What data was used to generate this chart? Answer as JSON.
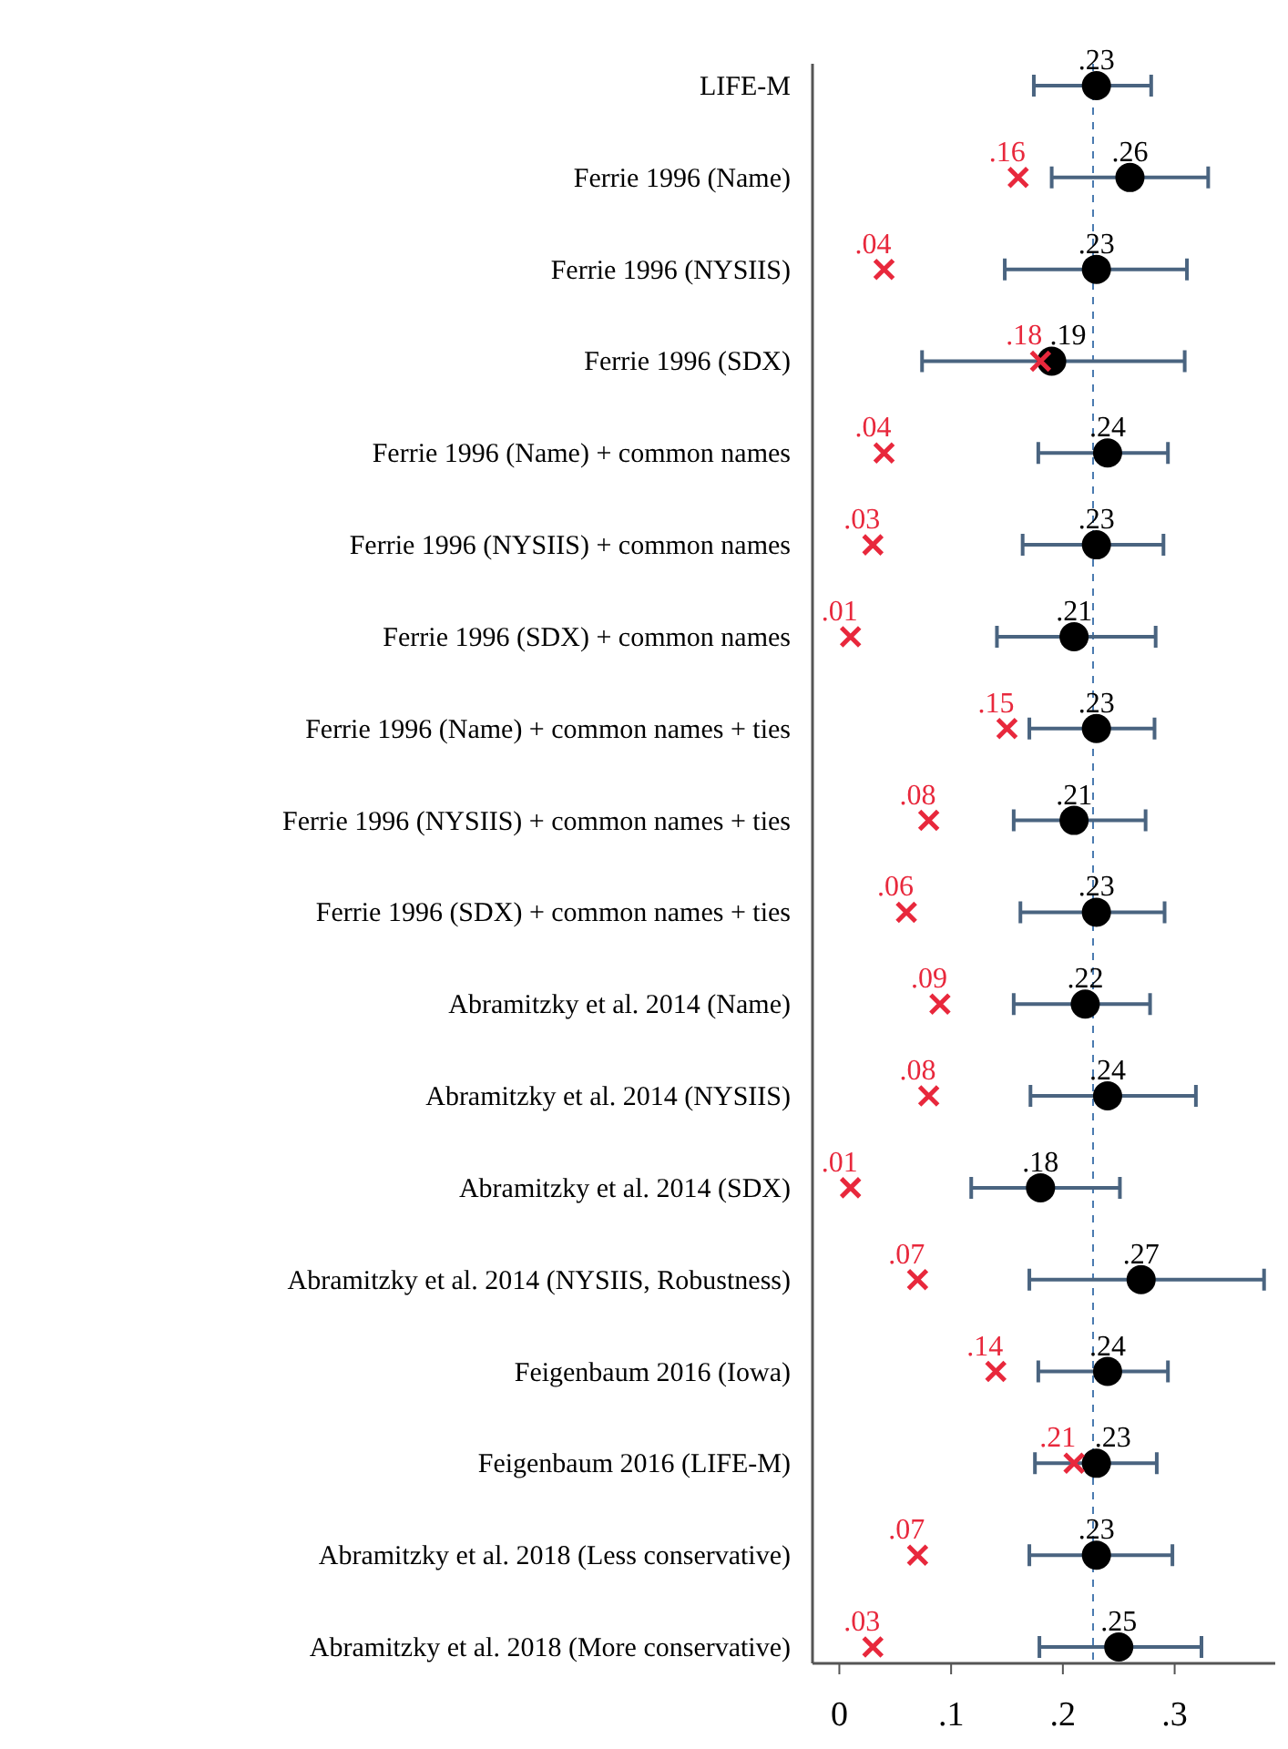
{
  "chart_data": {
    "type": "scatter",
    "orientation": "horizontal",
    "categories": [
      "LIFE-M",
      "Ferrie 1996 (Name)",
      "Ferrie 1996 (NYSIIS)",
      "Ferrie 1996 (SDX)",
      "Ferrie 1996 (Name) + common names",
      "Ferrie 1996 (NYSIIS) + common names",
      "Ferrie 1996 (SDX) + common names",
      "Ferrie 1996 (Name) + common names + ties",
      "Ferrie 1996 (NYSIIS) + common names + ties",
      "Ferrie 1996 (SDX) + common names + ties",
      "Abramitzky et al. 2014 (Name)",
      "Abramitzky et al. 2014 (NYSIIS)",
      "Abramitzky et al. 2014 (SDX)",
      "Abramitzky et al. 2014 (NYSIIS, Robustness)",
      "Feigenbaum 2016 (Iowa)",
      "Feigenbaum 2016 (LIFE-M)",
      "Abramitzky et al. 2018 (Less conservative)",
      "Abramitzky et al. 2018 (More conservative)"
    ],
    "series": [
      {
        "color": "#000000",
        "marker": "circle",
        "values": [
          0.23,
          0.26,
          0.23,
          0.19,
          0.24,
          0.23,
          0.21,
          0.23,
          0.21,
          0.23,
          0.22,
          0.24,
          0.18,
          0.27,
          0.24,
          0.23,
          0.23,
          0.25
        ],
        "value_labels": [
          ".23",
          ".26",
          ".23",
          ".19",
          ".24",
          ".23",
          ".21",
          ".23",
          ".21",
          ".23",
          ".22",
          ".24",
          ".18",
          ".27",
          ".24",
          ".23",
          ".23",
          ".25"
        ],
        "errors": [
          [
            0.174,
            0.279
          ],
          [
            0.19,
            0.33
          ],
          [
            0.148,
            0.311
          ],
          [
            0.074,
            0.309
          ],
          [
            0.178,
            0.294
          ],
          [
            0.164,
            0.29
          ],
          [
            0.141,
            0.283
          ],
          [
            0.17,
            0.282
          ],
          [
            0.156,
            0.274
          ],
          [
            0.162,
            0.291
          ],
          [
            0.156,
            0.278
          ],
          [
            0.171,
            0.319
          ],
          [
            0.118,
            0.251
          ],
          [
            0.17,
            0.38
          ],
          [
            0.178,
            0.294
          ],
          [
            0.175,
            0.284
          ],
          [
            0.17,
            0.298
          ],
          [
            0.179,
            0.324
          ]
        ]
      },
      {
        "color": "#e8283c",
        "marker": "cross",
        "values": [
          null,
          0.16,
          0.04,
          0.18,
          0.04,
          0.03,
          0.01,
          0.15,
          0.08,
          0.06,
          0.09,
          0.08,
          0.01,
          0.07,
          0.14,
          0.21,
          0.07,
          0.03
        ],
        "value_labels": [
          null,
          ".16",
          ".04",
          ".18",
          ".04",
          ".03",
          ".01",
          ".15",
          ".08",
          ".06",
          ".09",
          ".08",
          ".01",
          ".07",
          ".14",
          ".21",
          ".07",
          ".03"
        ]
      }
    ],
    "xlim": [
      -0.024,
      0.39
    ],
    "xticks": [
      0,
      {
        "value": 0.1,
        "label": ".1"
      },
      {
        "value": 0.2,
        "label": ".2"
      },
      {
        "value": 0.3,
        "label": ".3"
      }
    ],
    "ref_lines": [
      {
        "axis": "x",
        "value": 0.227,
        "color": "#4a7ab0",
        "line_style": "dashed"
      }
    ],
    "grid": false
  }
}
